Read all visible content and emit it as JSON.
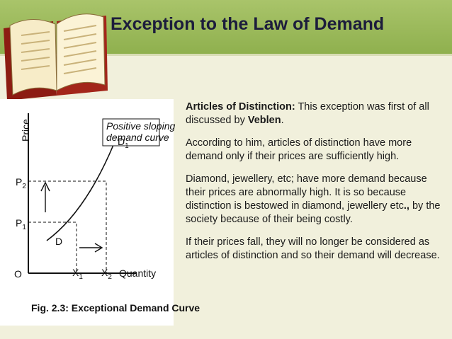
{
  "header": {
    "title": "Exception to the Law of Demand"
  },
  "figure": {
    "axis_y": "Price",
    "axis_x": "Quantity",
    "annotation": [
      "Positive sloping",
      "demand curve"
    ],
    "curve_start": "D",
    "curve_end": {
      "main": "D",
      "sub": "1"
    },
    "p2": {
      "main": "P",
      "sub": "2"
    },
    "p1": {
      "main": "P",
      "sub": "1"
    },
    "x1": {
      "main": "X",
      "sub": "1"
    },
    "x2": {
      "main": "X",
      "sub": "2"
    },
    "origin": "O",
    "caption": "Fig. 2.3: Exceptional Demand Curve"
  },
  "body": {
    "paragraphs": [
      [
        {
          "text": "Articles of Distinction:",
          "bold": true
        },
        {
          "text": " This exception was first of all discussed by ",
          "bold": false
        },
        {
          "text": "Veblen",
          "bold": true
        },
        {
          "text": ".",
          "bold": false
        }
      ],
      [
        {
          "text": "According to him, articles of distinction have more demand only if their prices are sufficiently high.",
          "bold": false
        }
      ],
      [
        {
          "text": "Diamond, jewellery, etc; have more demand because their prices are abnormally high. It is so because distinction is bestowed in diamond, jewellery etc",
          "bold": false
        },
        {
          "text": ".,",
          "bold": true
        },
        {
          "text": " by the society because of their being costly.",
          "bold": false
        }
      ],
      [
        {
          "text": "If their prices fall, they will no longer be considered as articles of distinction and so their demand will decrease.",
          "bold": false
        }
      ]
    ]
  }
}
